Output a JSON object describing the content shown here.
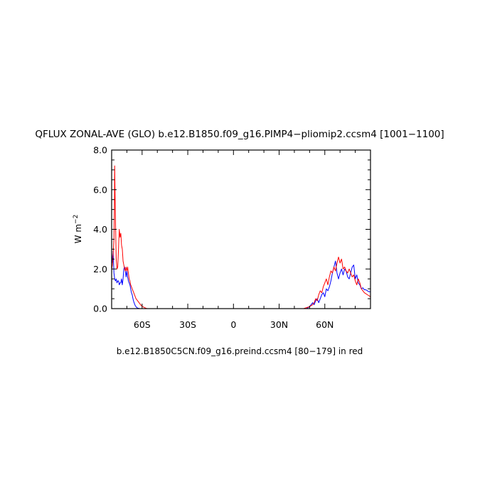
{
  "chart_data": {
    "type": "line",
    "title": "QFLUX ZONAL-AVE (GLO) b.e12.B1850.f09_g16.PIMP4−pliomip2.ccsm4 [1001−1100]",
    "ylabel_main": "W m",
    "ylabel_exp": "−2",
    "subtitle": "b.e12.B1850C5CN.f09_g16.preind.ccsm4 [80−179] in red",
    "xlim": [
      -80,
      90
    ],
    "ylim": [
      0,
      8
    ],
    "x_ticks": [
      {
        "value": -60,
        "label": "60S"
      },
      {
        "value": -30,
        "label": "30S"
      },
      {
        "value": 0,
        "label": "0"
      },
      {
        "value": 30,
        "label": "30N"
      },
      {
        "value": 60,
        "label": "60N"
      }
    ],
    "y_ticks": [
      {
        "value": 0,
        "label": "0.0"
      },
      {
        "value": 2,
        "label": "2.0"
      },
      {
        "value": 4,
        "label": "4.0"
      },
      {
        "value": 6,
        "label": "6.0"
      },
      {
        "value": 8,
        "label": "8.0"
      }
    ],
    "grid": false,
    "series": [
      {
        "color": "#0000ff",
        "x": [
          -80,
          -79.5,
          -79,
          -78.5,
          -78,
          -77.5,
          -77,
          -76.5,
          -76,
          -75.5,
          -75,
          -74.5,
          -74,
          -73.5,
          -73,
          -72.5,
          -72,
          -71.5,
          -71,
          -70.5,
          -70,
          -69.5,
          -69,
          -68.5,
          -68,
          -67.5,
          -67,
          -66.5,
          -66,
          -65.5,
          -65,
          -64.5,
          -64,
          -63.5,
          -63,
          -62.5,
          -62,
          -61.5,
          -61,
          -60.5,
          -60,
          -59.5,
          -59,
          -58.5,
          -58,
          -57.5,
          -57,
          -56.5,
          -56,
          -55.5,
          -55,
          -54.5,
          -54,
          -50,
          -40,
          -30,
          -20,
          -10,
          0,
          10,
          20,
          30,
          40,
          48,
          50,
          51,
          52,
          53,
          54,
          55,
          56,
          57,
          58,
          59,
          60,
          61,
          62,
          63,
          64,
          65,
          66,
          67,
          68,
          69,
          70,
          71,
          72,
          73,
          74,
          75,
          76,
          77,
          78,
          79,
          80,
          81,
          82,
          83,
          84,
          85,
          86,
          87,
          88,
          89,
          90
        ],
        "values": [
          2.8,
          2.3,
          2.9,
          1.8,
          1.5,
          1.4,
          1.5,
          1.3,
          1.4,
          1.4,
          1.2,
          1.3,
          1.3,
          1.5,
          1.2,
          1.5,
          2.0,
          2.1,
          1.9,
          1.6,
          1.9,
          1.6,
          1.4,
          1.3,
          1.2,
          1.0,
          0.8,
          0.7,
          0.5,
          0.35,
          0.25,
          0.15,
          0.1,
          0.05,
          0.03,
          0.02,
          0.01,
          0,
          0,
          0,
          0,
          0,
          0,
          0,
          0,
          0,
          0,
          0,
          0,
          0,
          0,
          0,
          0,
          0,
          0,
          0,
          0,
          0,
          0,
          0,
          0,
          0,
          0,
          0,
          0.1,
          0.2,
          0.3,
          0.2,
          0.4,
          0.5,
          0.3,
          0.5,
          0.7,
          0.8,
          0.6,
          1.0,
          0.9,
          1.1,
          1.4,
          1.8,
          2.1,
          2.4,
          1.8,
          1.5,
          1.8,
          2.0,
          1.7,
          2.0,
          1.9,
          1.6,
          1.5,
          1.8,
          2.1,
          2.2,
          1.5,
          1.7,
          1.3,
          1.2,
          1.0,
          1.05,
          0.95,
          0.95,
          0.9,
          0.85,
          0.85
        ]
      },
      {
        "color": "#ff0000",
        "x": [
          -80,
          -79.5,
          -79,
          -78.5,
          -78.2,
          -78,
          -77.8,
          -77.5,
          -77,
          -76.5,
          -76,
          -75.5,
          -75,
          -74.5,
          -74,
          -73.5,
          -73,
          -72.5,
          -72,
          -71.5,
          -71,
          -70.5,
          -70,
          -69.5,
          -69,
          -68.5,
          -68,
          -67.5,
          -67,
          -66.5,
          -66,
          -65.5,
          -65,
          -64.5,
          -64,
          -63.5,
          -63,
          -62.5,
          -62,
          -61.5,
          -61,
          -60.5,
          -60,
          -59.5,
          -59,
          -58.5,
          -58,
          -57.5,
          -57,
          -56.5,
          -56,
          -55.5,
          -55,
          -54.5,
          -54,
          -50,
          -40,
          -30,
          -20,
          -10,
          0,
          10,
          20,
          30,
          40,
          46,
          48,
          50,
          51,
          52,
          53,
          54,
          55,
          56,
          57,
          58,
          59,
          60,
          61,
          62,
          63,
          64,
          65,
          66,
          67,
          68,
          69,
          70,
          71,
          72,
          73,
          74,
          75,
          76,
          77,
          78,
          79,
          80,
          81,
          82,
          83,
          84,
          85,
          86,
          87,
          88,
          89,
          90
        ],
        "values": [
          2.0,
          2.2,
          2.8,
          3.5,
          5.0,
          7.2,
          6.0,
          4.5,
          2.5,
          2.0,
          2.1,
          3.0,
          4.0,
          3.6,
          3.8,
          3.2,
          3.0,
          2.4,
          2.2,
          2.0,
          1.9,
          2.1,
          1.9,
          2.1,
          1.8,
          1.5,
          1.4,
          1.2,
          1.1,
          1.0,
          0.9,
          0.8,
          0.7,
          0.6,
          0.5,
          0.45,
          0.4,
          0.35,
          0.3,
          0.25,
          0.2,
          0.15,
          0.12,
          0.1,
          0.08,
          0.05,
          0.04,
          0.02,
          0.01,
          0,
          0,
          0,
          0,
          0,
          0,
          0,
          0,
          0,
          0,
          0,
          0,
          0,
          0,
          0,
          0,
          0,
          0.05,
          0.1,
          0.15,
          0.2,
          0.3,
          0.5,
          0.4,
          0.7,
          0.9,
          0.8,
          1.1,
          1.3,
          1.5,
          1.2,
          1.6,
          1.9,
          1.8,
          2.1,
          1.9,
          2.3,
          2.6,
          2.3,
          2.5,
          2.0,
          2.1,
          1.9,
          1.8,
          2.0,
          1.8,
          1.6,
          1.7,
          1.4,
          1.2,
          1.5,
          1.3,
          1.0,
          0.9,
          0.8,
          0.75,
          0.7,
          0.65,
          0.6
        ]
      }
    ]
  }
}
